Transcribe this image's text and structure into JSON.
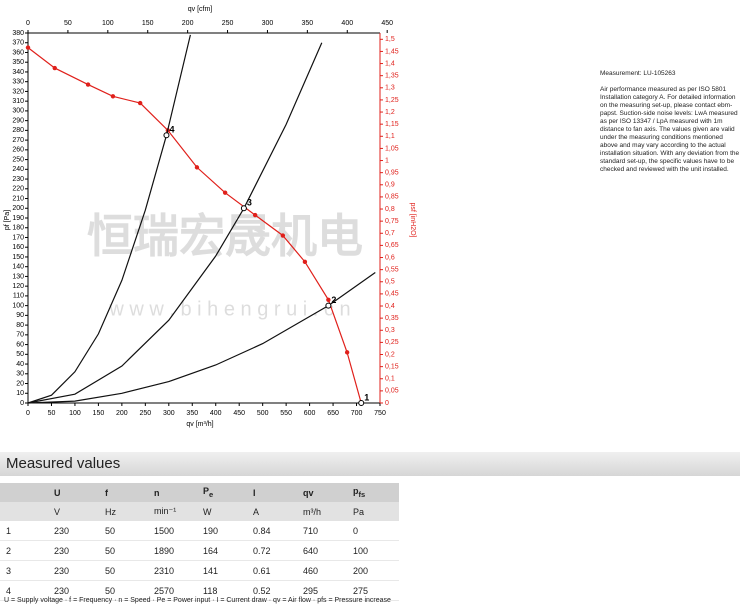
{
  "chart_data": {
    "type": "line",
    "x_label": "qv [m³/h]",
    "x2_label": "qv [cfm]",
    "y_label": "pf [Pa]",
    "y2_label": "psf [inH2O]",
    "xlim": [
      0,
      750
    ],
    "xticks": [
      0,
      50,
      100,
      150,
      200,
      250,
      300,
      350,
      400,
      450,
      500,
      550,
      600,
      650,
      700,
      750
    ],
    "x2lim": [
      0,
      441
    ],
    "x2ticks": [
      0,
      50,
      100,
      150,
      200,
      250,
      300,
      350,
      400,
      450
    ],
    "ylim": [
      0,
      380
    ],
    "yticks": [
      0,
      10,
      20,
      30,
      40,
      50,
      60,
      70,
      80,
      90,
      100,
      110,
      120,
      130,
      140,
      150,
      160,
      170,
      180,
      190,
      200,
      210,
      220,
      230,
      240,
      250,
      260,
      270,
      280,
      290,
      300,
      310,
      320,
      330,
      340,
      350,
      360,
      370,
      380
    ],
    "y2lim": [
      0,
      1.526
    ],
    "y2ticks": [
      0,
      {
        "value": 0.05,
        "label": "0,05"
      },
      {
        "value": 0.1,
        "label": "0,1"
      },
      {
        "value": 0.15,
        "label": "0,15"
      },
      {
        "value": 0.2,
        "label": "0,2"
      },
      {
        "value": 0.25,
        "label": "0,25"
      },
      {
        "value": 0.3,
        "label": "0,3"
      },
      {
        "value": 0.35,
        "label": "0,35"
      },
      {
        "value": 0.4,
        "label": "0,4"
      },
      {
        "value": 0.45,
        "label": "0,45"
      },
      {
        "value": 0.5,
        "label": "0,5"
      },
      {
        "value": 0.55,
        "label": "0,55"
      },
      {
        "value": 0.6,
        "label": "0,6"
      },
      {
        "value": 0.65,
        "label": "0,65"
      },
      {
        "value": 0.7,
        "label": "0,7"
      },
      {
        "value": 0.75,
        "label": "0,75"
      },
      {
        "value": 0.8,
        "label": "0,8"
      },
      {
        "value": 0.85,
        "label": "0,85"
      },
      {
        "value": 0.9,
        "label": "0,9"
      },
      {
        "value": 0.95,
        "label": "0,95"
      },
      1,
      {
        "value": 1.05,
        "label": "1,05"
      },
      {
        "value": 1.1,
        "label": "1,1"
      },
      {
        "value": 1.15,
        "label": "1,15"
      },
      {
        "value": 1.2,
        "label": "1,2"
      },
      {
        "value": 1.25,
        "label": "1,25"
      },
      {
        "value": 1.3,
        "label": "1,3"
      },
      {
        "value": 1.35,
        "label": "1,35"
      },
      {
        "value": 1.4,
        "label": "1,4"
      },
      {
        "value": 1.45,
        "label": "1,45"
      },
      {
        "value": 1.5,
        "label": "1,5"
      }
    ],
    "y2_color": "#e0201b",
    "series": [
      {
        "color": "#e0201b",
        "markers": true,
        "x": [
          0,
          57,
          128,
          181,
          239,
          298,
          360,
          420,
          484,
          543,
          590,
          640,
          680,
          710
        ],
        "values": [
          365,
          344,
          327,
          315,
          308,
          280,
          242,
          216,
          193,
          172,
          145,
          106,
          52,
          0
        ]
      },
      {
        "color": "#111111",
        "markers": false,
        "x": [
          0,
          50,
          100,
          150,
          200,
          250,
          295,
          346
        ],
        "values": [
          0,
          8,
          32,
          71,
          126,
          198,
          275,
          378
        ]
      },
      {
        "color": "#111111",
        "markers": false,
        "x": [
          0,
          100,
          200,
          300,
          400,
          460,
          550,
          626
        ],
        "values": [
          0,
          9,
          38,
          85,
          151,
          200,
          286,
          370
        ]
      },
      {
        "color": "#111111",
        "markers": false,
        "x": [
          0,
          100,
          200,
          300,
          400,
          500,
          640,
          740
        ],
        "values": [
          0,
          2,
          10,
          22,
          39,
          61,
          100,
          134
        ]
      }
    ],
    "operating_points": [
      {
        "label": "1",
        "x": 710,
        "y": 0
      },
      {
        "label": "2",
        "x": 640,
        "y": 100
      },
      {
        "label": "3",
        "x": 460,
        "y": 200
      },
      {
        "label": "4",
        "x": 295,
        "y": 275
      }
    ],
    "watermark": "恒瑞宏晟机电",
    "watermark_url": "w w w . b i h e n g r u i . c n"
  },
  "notes": {
    "measurement": "Measurement: LU-105263",
    "text": "Air performance measured as per ISO 5801 Installation category A. For detailed information on the measuring set-up, please contact ebm-papst. Suction-side noise levels: LwA measured as per ISO 13347 / LpA measured with 1m distance to fan axis. The values given are valid under the measuring conditions mentioned above and may vary according to the actual installation situation. With any deviation from the standard set-up, the specific values have to be checked and reviewed with the unit installed."
  },
  "table": {
    "title": "Measured values",
    "header": [
      "U",
      "f",
      "n",
      {
        "main": "P",
        "sub": "e"
      },
      "I",
      "qv",
      {
        "main": "p",
        "sub": "fs"
      }
    ],
    "units": [
      "V",
      "Hz",
      "min⁻¹",
      "W",
      "A",
      "m³/h",
      "Pa"
    ],
    "rows": [
      [
        1,
        230,
        50,
        1500,
        190,
        0.84,
        710,
        0
      ],
      [
        2,
        230,
        50,
        1890,
        164,
        0.72,
        640,
        100
      ],
      [
        3,
        230,
        50,
        2310,
        141,
        0.61,
        460,
        200
      ],
      [
        4,
        230,
        50,
        2570,
        118,
        0.52,
        295,
        275
      ]
    ],
    "footnote": "U = Supply voltage · f = Frequency · n = Speed · Pe = Power input · I = Current draw · qv = Air flow · pfs = Pressure increase"
  }
}
